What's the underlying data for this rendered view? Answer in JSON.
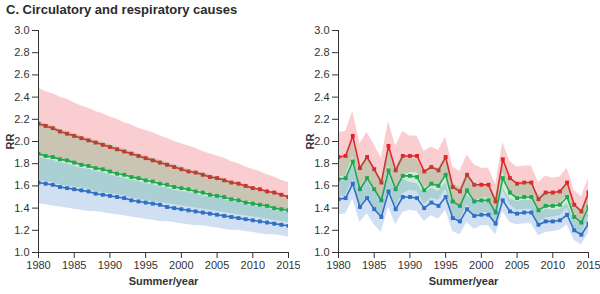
{
  "chart_data": [
    {
      "type": "line",
      "title": "C. Circulatory and respiratory causes",
      "x": [
        1980,
        1981,
        1982,
        1983,
        1984,
        1985,
        1986,
        1987,
        1988,
        1989,
        1990,
        1991,
        1992,
        1993,
        1994,
        1995,
        1996,
        1997,
        1998,
        1999,
        2000,
        2001,
        2002,
        2003,
        2004,
        2005,
        2006,
        2007,
        2008,
        2009,
        2010,
        2011,
        2012,
        2013,
        2014,
        2015
      ],
      "xlim": [
        1980,
        2015
      ],
      "xticks": [
        1980,
        1985,
        1990,
        1995,
        2000,
        2005,
        2010,
        2015
      ],
      "ylim": [
        1.0,
        3.0
      ],
      "yticks": [
        {
          "value": 1.0,
          "label": "1.0"
        },
        1.2,
        1.4,
        1.6,
        1.8,
        {
          "value": 2.0,
          "label": "2.0"
        },
        2.2,
        2.4,
        2.6,
        2.8,
        {
          "value": 3.0,
          "label": "3.0"
        }
      ],
      "x_label": "Summer/year",
      "y_label": "RR",
      "grid": false,
      "marker": "square",
      "series": [
        {
          "color": "#e8212b",
          "values": [
            2.16,
            2.14,
            2.12,
            2.09,
            2.07,
            2.05,
            2.03,
            2.01,
            1.99,
            1.97,
            1.95,
            1.93,
            1.91,
            1.89,
            1.87,
            1.85,
            1.83,
            1.81,
            1.79,
            1.77,
            1.75,
            1.73,
            1.72,
            1.7,
            1.68,
            1.67,
            1.65,
            1.63,
            1.62,
            1.6,
            1.58,
            1.57,
            1.55,
            1.54,
            1.52,
            1.5
          ],
          "upper": [
            2.48,
            2.45,
            2.43,
            2.4,
            2.38,
            2.35,
            2.32,
            2.3,
            2.27,
            2.25,
            2.22,
            2.2,
            2.17,
            2.15,
            2.12,
            2.1,
            2.08,
            2.05,
            2.03,
            2.0,
            1.98,
            1.96,
            1.94,
            1.91,
            1.89,
            1.87,
            1.85,
            1.82,
            1.8,
            1.77,
            1.75,
            1.73,
            1.7,
            1.68,
            1.65,
            1.63
          ],
          "lower": [
            1.87,
            1.86,
            1.84,
            1.83,
            1.81,
            1.8,
            1.79,
            1.77,
            1.76,
            1.74,
            1.73,
            1.72,
            1.7,
            1.69,
            1.67,
            1.66,
            1.65,
            1.63,
            1.62,
            1.6,
            1.59,
            1.58,
            1.56,
            1.55,
            1.53,
            1.52,
            1.51,
            1.49,
            1.48,
            1.46,
            1.45,
            1.44,
            1.42,
            1.41,
            1.39,
            1.38
          ]
        },
        {
          "color": "#1fa84f",
          "values": [
            1.89,
            1.87,
            1.86,
            1.84,
            1.83,
            1.81,
            1.79,
            1.78,
            1.76,
            1.75,
            1.73,
            1.71,
            1.7,
            1.68,
            1.67,
            1.65,
            1.64,
            1.62,
            1.61,
            1.59,
            1.58,
            1.57,
            1.55,
            1.54,
            1.52,
            1.51,
            1.5,
            1.48,
            1.47,
            1.45,
            1.44,
            1.43,
            1.42,
            1.4,
            1.39,
            1.38
          ],
          "upper": [
            2.18,
            2.16,
            2.14,
            2.11,
            2.09,
            2.07,
            2.05,
            2.03,
            2.01,
            1.99,
            1.97,
            1.95,
            1.93,
            1.91,
            1.89,
            1.87,
            1.85,
            1.83,
            1.81,
            1.79,
            1.77,
            1.75,
            1.73,
            1.72,
            1.7,
            1.68,
            1.66,
            1.64,
            1.63,
            1.61,
            1.59,
            1.57,
            1.55,
            1.54,
            1.52,
            1.5
          ],
          "lower": [
            1.65,
            1.64,
            1.63,
            1.61,
            1.6,
            1.59,
            1.58,
            1.57,
            1.55,
            1.54,
            1.53,
            1.52,
            1.51,
            1.49,
            1.48,
            1.47,
            1.46,
            1.45,
            1.44,
            1.43,
            1.42,
            1.41,
            1.4,
            1.39,
            1.38,
            1.37,
            1.36,
            1.35,
            1.34,
            1.33,
            1.32,
            1.31,
            1.3,
            1.29,
            1.28,
            1.27
          ]
        },
        {
          "color": "#2f6fc4",
          "values": [
            1.63,
            1.62,
            1.61,
            1.59,
            1.58,
            1.57,
            1.56,
            1.55,
            1.53,
            1.52,
            1.51,
            1.5,
            1.49,
            1.47,
            1.46,
            1.45,
            1.44,
            1.43,
            1.41,
            1.4,
            1.39,
            1.38,
            1.37,
            1.36,
            1.35,
            1.34,
            1.33,
            1.32,
            1.31,
            1.3,
            1.29,
            1.28,
            1.27,
            1.26,
            1.25,
            1.24
          ],
          "upper": [
            1.86,
            1.84,
            1.83,
            1.81,
            1.8,
            1.78,
            1.76,
            1.75,
            1.73,
            1.72,
            1.7,
            1.68,
            1.67,
            1.65,
            1.64,
            1.62,
            1.61,
            1.59,
            1.58,
            1.56,
            1.55,
            1.54,
            1.53,
            1.51,
            1.5,
            1.49,
            1.48,
            1.46,
            1.45,
            1.43,
            1.42,
            1.41,
            1.4,
            1.38,
            1.37,
            1.36
          ],
          "lower": [
            1.44,
            1.43,
            1.42,
            1.41,
            1.4,
            1.39,
            1.38,
            1.37,
            1.37,
            1.36,
            1.35,
            1.34,
            1.33,
            1.32,
            1.31,
            1.3,
            1.29,
            1.28,
            1.28,
            1.27,
            1.26,
            1.25,
            1.24,
            1.24,
            1.23,
            1.22,
            1.21,
            1.2,
            1.2,
            1.19,
            1.18,
            1.17,
            1.16,
            1.16,
            1.15,
            1.14
          ]
        }
      ]
    },
    {
      "type": "line",
      "x": [
        1980,
        1981,
        1982,
        1983,
        1984,
        1985,
        1986,
        1987,
        1988,
        1989,
        1990,
        1991,
        1992,
        1993,
        1994,
        1995,
        1996,
        1997,
        1998,
        1999,
        2000,
        2001,
        2002,
        2003,
        2004,
        2005,
        2006,
        2007,
        2008,
        2009,
        2010,
        2011,
        2012,
        2013,
        2014,
        2015
      ],
      "xlim": [
        1980,
        2015
      ],
      "xticks": [
        1980,
        1985,
        1990,
        1995,
        2000,
        2005,
        2010,
        2015
      ],
      "ylim": [
        1.0,
        3.0
      ],
      "yticks": [
        {
          "value": 1.0,
          "label": "1.0"
        },
        1.2,
        1.4,
        1.6,
        1.8,
        {
          "value": 2.0,
          "label": "2.0"
        },
        2.2,
        2.4,
        2.6,
        2.8,
        {
          "value": 3.0,
          "label": "3.0"
        }
      ],
      "x_label": "Summer/year",
      "y_label": "RR",
      "grid": false,
      "marker": "square",
      "series": [
        {
          "color": "#e8212b",
          "values": [
            1.86,
            1.87,
            2.05,
            1.76,
            1.86,
            1.75,
            1.63,
            1.96,
            1.74,
            1.87,
            1.87,
            1.87,
            1.73,
            1.77,
            1.74,
            1.86,
            1.59,
            1.55,
            1.7,
            1.61,
            1.61,
            1.61,
            1.46,
            1.84,
            1.67,
            1.62,
            1.63,
            1.63,
            1.48,
            1.54,
            1.54,
            1.55,
            1.63,
            1.43,
            1.37,
            1.54
          ],
          "upper": [
            2.08,
            2.09,
            2.27,
            1.98,
            2.08,
            1.97,
            1.85,
            2.18,
            1.96,
            2.09,
            2.05,
            2.05,
            1.91,
            1.95,
            1.92,
            2.04,
            1.77,
            1.73,
            1.88,
            1.79,
            1.76,
            1.76,
            1.61,
            1.99,
            1.82,
            1.77,
            1.78,
            1.78,
            1.63,
            1.69,
            1.67,
            1.68,
            1.76,
            1.56,
            1.5,
            1.67
          ],
          "lower": [
            1.68,
            1.69,
            1.87,
            1.58,
            1.68,
            1.57,
            1.45,
            1.78,
            1.56,
            1.69,
            1.72,
            1.72,
            1.58,
            1.62,
            1.59,
            1.71,
            1.44,
            1.4,
            1.55,
            1.46,
            1.49,
            1.49,
            1.34,
            1.72,
            1.55,
            1.5,
            1.51,
            1.51,
            1.36,
            1.42,
            1.43,
            1.44,
            1.52,
            1.32,
            1.26,
            1.43
          ]
        },
        {
          "color": "#1fa84f",
          "values": [
            1.66,
            1.67,
            1.82,
            1.57,
            1.67,
            1.57,
            1.47,
            1.74,
            1.57,
            1.69,
            1.69,
            1.68,
            1.56,
            1.62,
            1.6,
            1.7,
            1.46,
            1.42,
            1.56,
            1.46,
            1.47,
            1.47,
            1.36,
            1.67,
            1.54,
            1.49,
            1.5,
            1.5,
            1.38,
            1.42,
            1.42,
            1.43,
            1.5,
            1.32,
            1.27,
            1.41
          ],
          "upper": [
            1.85,
            1.86,
            2.01,
            1.76,
            1.86,
            1.76,
            1.66,
            1.93,
            1.76,
            1.88,
            1.85,
            1.84,
            1.72,
            1.78,
            1.76,
            1.86,
            1.62,
            1.58,
            1.72,
            1.62,
            1.6,
            1.6,
            1.49,
            1.8,
            1.67,
            1.62,
            1.63,
            1.63,
            1.51,
            1.55,
            1.53,
            1.54,
            1.61,
            1.43,
            1.38,
            1.52
          ],
          "lower": [
            1.5,
            1.51,
            1.66,
            1.41,
            1.51,
            1.41,
            1.31,
            1.58,
            1.41,
            1.53,
            1.56,
            1.55,
            1.43,
            1.49,
            1.47,
            1.57,
            1.33,
            1.29,
            1.43,
            1.33,
            1.36,
            1.36,
            1.25,
            1.56,
            1.43,
            1.38,
            1.39,
            1.39,
            1.27,
            1.31,
            1.32,
            1.33,
            1.4,
            1.22,
            1.17,
            1.31
          ]
        },
        {
          "color": "#2f6fc4",
          "values": [
            1.48,
            1.49,
            1.62,
            1.41,
            1.49,
            1.39,
            1.32,
            1.55,
            1.39,
            1.5,
            1.5,
            1.49,
            1.4,
            1.45,
            1.42,
            1.5,
            1.31,
            1.28,
            1.39,
            1.33,
            1.34,
            1.34,
            1.26,
            1.47,
            1.37,
            1.35,
            1.36,
            1.36,
            1.25,
            1.28,
            1.28,
            1.29,
            1.34,
            1.2,
            1.16,
            1.26
          ],
          "upper": [
            1.64,
            1.65,
            1.78,
            1.57,
            1.65,
            1.55,
            1.48,
            1.71,
            1.55,
            1.66,
            1.63,
            1.62,
            1.53,
            1.58,
            1.55,
            1.63,
            1.44,
            1.41,
            1.52,
            1.46,
            1.45,
            1.45,
            1.37,
            1.58,
            1.48,
            1.46,
            1.47,
            1.47,
            1.36,
            1.39,
            1.38,
            1.39,
            1.44,
            1.3,
            1.26,
            1.36
          ],
          "lower": [
            1.34,
            1.35,
            1.48,
            1.27,
            1.35,
            1.25,
            1.18,
            1.41,
            1.25,
            1.36,
            1.38,
            1.37,
            1.28,
            1.33,
            1.3,
            1.38,
            1.19,
            1.16,
            1.27,
            1.21,
            1.24,
            1.24,
            1.16,
            1.37,
            1.27,
            1.25,
            1.26,
            1.26,
            1.15,
            1.18,
            1.19,
            1.2,
            1.25,
            1.11,
            1.07,
            1.17
          ]
        }
      ]
    }
  ]
}
